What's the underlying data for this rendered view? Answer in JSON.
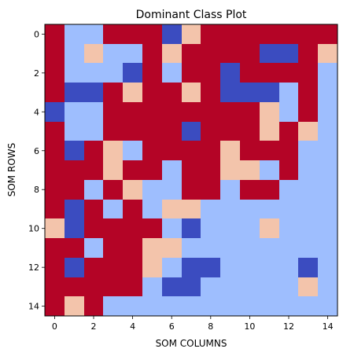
{
  "chart_data": {
    "type": "heatmap",
    "title": "Dominant Class Plot",
    "xlabel": "SOM COLUMNS",
    "ylabel": "SOM ROWS",
    "xlim": [
      -0.5,
      14.5
    ],
    "ylim": [
      14.5,
      -0.5
    ],
    "x_ticks": [
      0,
      2,
      4,
      6,
      8,
      10,
      12,
      14
    ],
    "y_ticks": [
      0,
      2,
      4,
      6,
      8,
      10,
      12,
      14
    ],
    "grid": false,
    "legend": "none",
    "colormap": "coolwarm",
    "class_colors": [
      "#3b4cc0",
      "#9ebefe",
      "#f3c4ab",
      "#b40426"
    ],
    "values": [
      [
        3,
        1,
        1,
        3,
        3,
        3,
        0,
        2,
        3,
        3,
        3,
        3,
        3,
        3,
        3
      ],
      [
        3,
        1,
        2,
        1,
        1,
        3,
        2,
        3,
        3,
        3,
        3,
        0,
        0,
        3,
        2
      ],
      [
        3,
        1,
        1,
        1,
        0,
        3,
        1,
        3,
        3,
        0,
        3,
        3,
        3,
        3,
        1
      ],
      [
        3,
        0,
        0,
        3,
        2,
        3,
        3,
        2,
        3,
        0,
        0,
        0,
        1,
        3,
        1
      ],
      [
        0,
        1,
        1,
        3,
        3,
        3,
        3,
        3,
        3,
        3,
        3,
        2,
        1,
        3,
        1
      ],
      [
        3,
        1,
        1,
        3,
        3,
        3,
        3,
        0,
        3,
        3,
        3,
        2,
        3,
        2,
        1
      ],
      [
        3,
        0,
        3,
        2,
        1,
        3,
        3,
        3,
        3,
        2,
        3,
        3,
        3,
        1,
        1
      ],
      [
        3,
        3,
        3,
        2,
        3,
        3,
        1,
        3,
        3,
        2,
        2,
        1,
        3,
        1,
        1
      ],
      [
        3,
        3,
        1,
        3,
        2,
        1,
        1,
        3,
        3,
        1,
        3,
        3,
        1,
        1,
        1
      ],
      [
        3,
        0,
        3,
        1,
        3,
        1,
        2,
        2,
        1,
        1,
        1,
        1,
        1,
        1,
        1
      ],
      [
        2,
        0,
        3,
        3,
        3,
        3,
        1,
        0,
        1,
        1,
        1,
        2,
        1,
        1,
        1
      ],
      [
        3,
        3,
        1,
        3,
        3,
        2,
        2,
        1,
        1,
        1,
        1,
        1,
        1,
        1,
        1
      ],
      [
        3,
        0,
        3,
        3,
        3,
        2,
        1,
        0,
        0,
        1,
        1,
        1,
        1,
        0,
        1
      ],
      [
        3,
        3,
        3,
        3,
        3,
        1,
        0,
        0,
        1,
        1,
        1,
        1,
        1,
        2,
        1
      ],
      [
        3,
        2,
        3,
        1,
        1,
        1,
        1,
        1,
        1,
        1,
        1,
        1,
        1,
        1,
        1
      ]
    ]
  }
}
